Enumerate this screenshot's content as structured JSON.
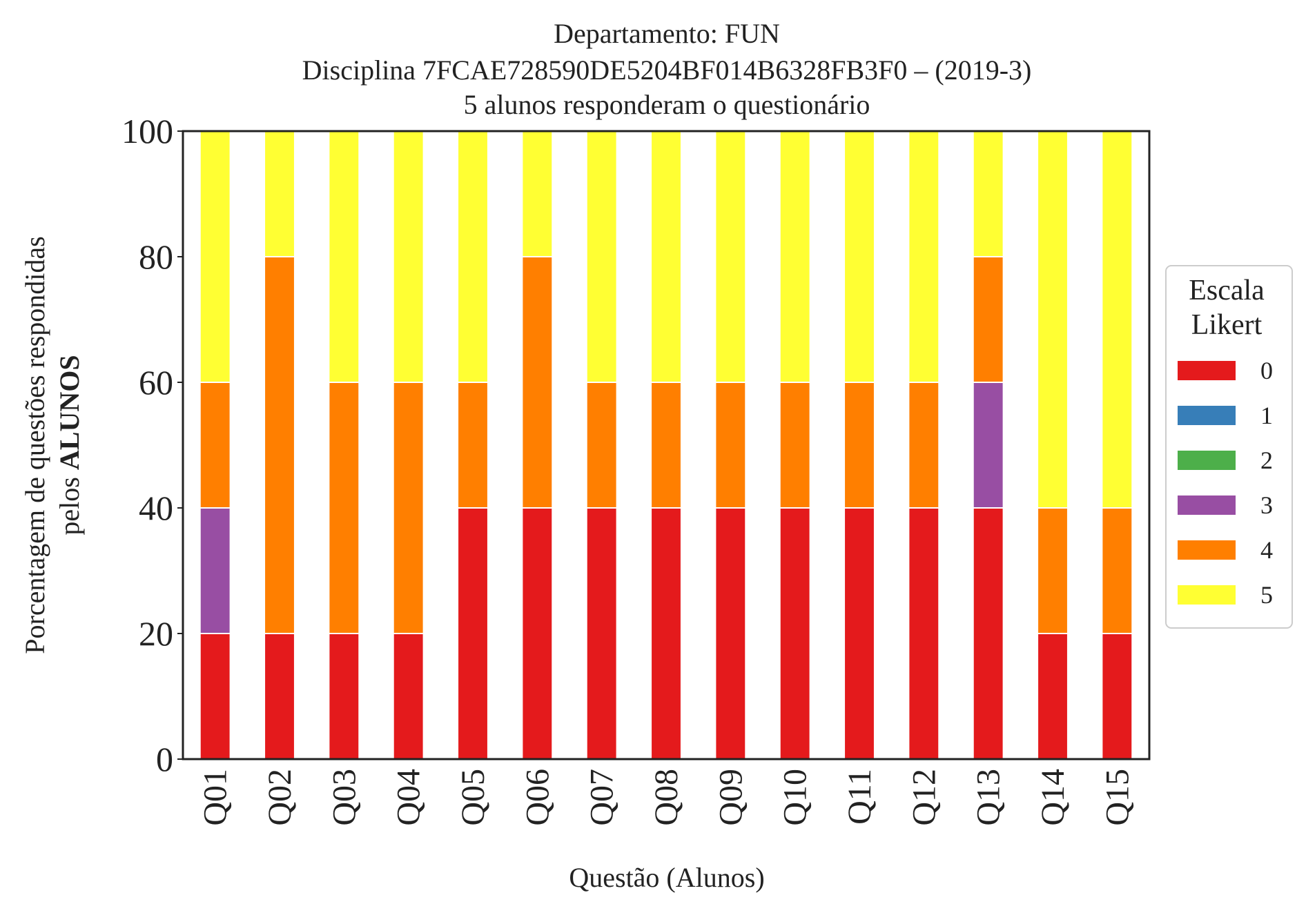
{
  "chart_data": {
    "type": "bar",
    "stacked": true,
    "title_lines": [
      "Departamento: FUN",
      "Disciplina 7FCAE728590DE5204BF014B6328FB3F0 – (2019-3)",
      "5 alunos responderam o questionário"
    ],
    "xlabel": "Questão (Alunos)",
    "ylabel_line1": "Porcentagem de questões respondidas",
    "ylabel_line2_prefix": "pelos ",
    "ylabel_line2_bold": "ALUNOS",
    "ylim": [
      0,
      100
    ],
    "yticks": [
      "0",
      "20",
      "40",
      "60",
      "80",
      "100"
    ],
    "grid": false,
    "legend_position": "right",
    "legend_title_lines": [
      "Escala",
      "Likert"
    ],
    "categories": [
      "Q01",
      "Q02",
      "Q03",
      "Q04",
      "Q05",
      "Q06",
      "Q07",
      "Q08",
      "Q09",
      "Q10",
      "Q11",
      "Q12",
      "Q13",
      "Q14",
      "Q15"
    ],
    "series": [
      {
        "name": "0",
        "color": "#e41a1c",
        "values": [
          20,
          20,
          20,
          20,
          40,
          40,
          40,
          40,
          40,
          40,
          40,
          40,
          40,
          20,
          20
        ]
      },
      {
        "name": "1",
        "color": "#377eb8",
        "values": [
          0,
          0,
          0,
          0,
          0,
          0,
          0,
          0,
          0,
          0,
          0,
          0,
          0,
          0,
          0
        ]
      },
      {
        "name": "2",
        "color": "#4daf4a",
        "values": [
          0,
          0,
          0,
          0,
          0,
          0,
          0,
          0,
          0,
          0,
          0,
          0,
          0,
          0,
          0
        ]
      },
      {
        "name": "3",
        "color": "#984ea3",
        "values": [
          20,
          0,
          0,
          0,
          0,
          0,
          0,
          0,
          0,
          0,
          0,
          0,
          20,
          0,
          0
        ]
      },
      {
        "name": "4",
        "color": "#ff7f00",
        "values": [
          20,
          60,
          40,
          40,
          20,
          40,
          20,
          20,
          20,
          20,
          20,
          20,
          20,
          20,
          20
        ]
      },
      {
        "name": "5",
        "color": "#ffff33",
        "values": [
          40,
          20,
          40,
          40,
          40,
          20,
          40,
          40,
          40,
          40,
          40,
          40,
          20,
          60,
          60
        ]
      }
    ]
  }
}
